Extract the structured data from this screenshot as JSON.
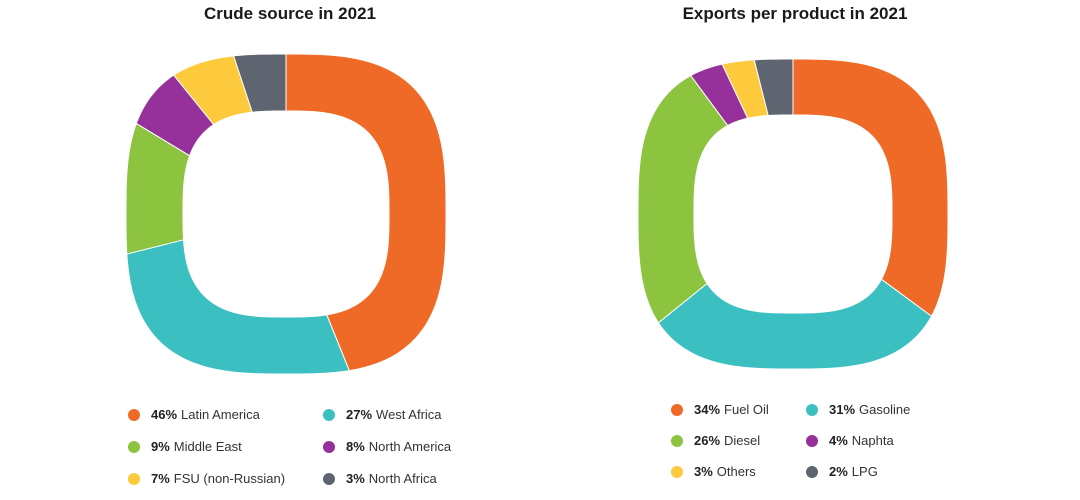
{
  "chart_data": [
    {
      "type": "pie",
      "donut": true,
      "title": "Crude source in 2021",
      "categories": [
        "Latin America",
        "West Africa",
        "Middle East",
        "North America",
        "FSU (non-Russian)",
        "North Africa"
      ],
      "values": [
        46,
        27,
        9,
        8,
        7,
        3
      ],
      "value_labels": [
        "46%",
        "27%",
        "9%",
        "8%",
        "7%",
        "3%"
      ],
      "colors": [
        "#EF6A26",
        "#3CBFC1",
        "#8CC43F",
        "#96309A",
        "#FDC93D",
        "#5E6470"
      ],
      "legend": "bottom"
    },
    {
      "type": "pie",
      "donut": true,
      "title": "Exports per product in 2021",
      "categories": [
        "Fuel Oil",
        "Gasoline",
        "Diesel",
        "Naphta",
        "Others",
        "LPG"
      ],
      "values": [
        34,
        31,
        26,
        4,
        3,
        2
      ],
      "value_labels": [
        "34%",
        "31%",
        "26%",
        "4%",
        "3%",
        "2%"
      ],
      "colors": [
        "#EF6A26",
        "#3CBFC1",
        "#8CC43F",
        "#96309A",
        "#FDC93D",
        "#5E6470"
      ],
      "legend": "bottom"
    }
  ]
}
